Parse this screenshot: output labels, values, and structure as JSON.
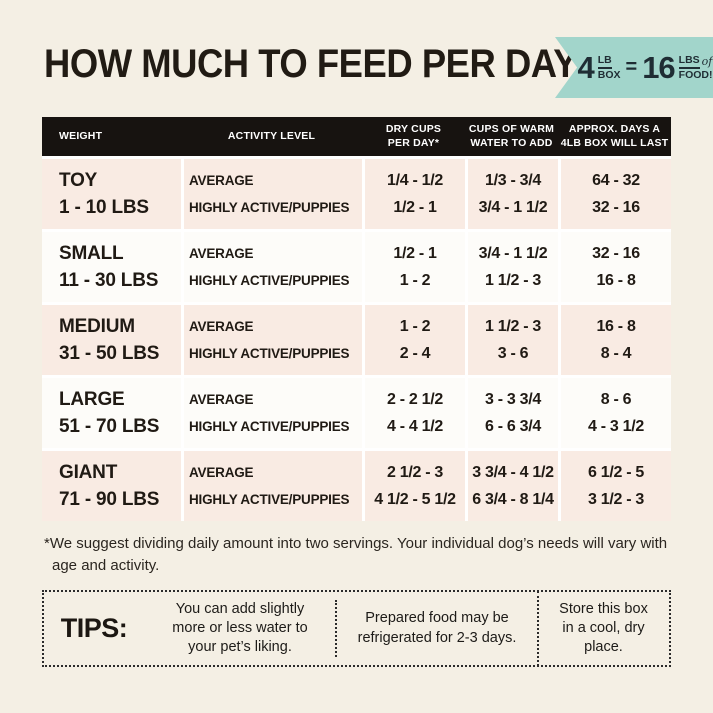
{
  "page": {
    "title": "HOW MUCH TO FEED PER DAY"
  },
  "colors": {
    "background": "#f4efe4",
    "badge_teal": "#a2d5cb",
    "header_black": "#171310",
    "row_pink": "#f9ebe3",
    "row_white": "#fdfcf9",
    "text": "#201a14"
  },
  "badge": {
    "amount1": "4",
    "unit1_top": "LB",
    "unit1_bottom": "BOX",
    "equals": "=",
    "amount2": "16",
    "unit2_top": "LBS",
    "unit2_of": "of",
    "unit2_bottom": "FOOD!"
  },
  "table": {
    "header": [
      "WEIGHT",
      "ACTIVITY LEVEL",
      "DRY CUPS\nPER DAY*",
      "CUPS OF WARM\nWATER TO ADD",
      "APPROX. DAYS A\n4LB BOX WILL LAST"
    ],
    "activity_labels": [
      "AVERAGE",
      "HIGHLY ACTIVE/PUPPIES"
    ],
    "rows": [
      {
        "size": "TOY",
        "range": "1 - 10 LBS",
        "average": {
          "dry": "1/4 - 1/2",
          "water": "1/3 - 3/4",
          "days": "64 - 32"
        },
        "active": {
          "dry": "1/2 - 1",
          "water": "3/4 - 1 1/2",
          "days": "32 - 16"
        }
      },
      {
        "size": "SMALL",
        "range": "11 - 30 LBS",
        "average": {
          "dry": "1/2 - 1",
          "water": "3/4 - 1 1/2",
          "days": "32 - 16"
        },
        "active": {
          "dry": "1 - 2",
          "water": "1 1/2 - 3",
          "days": "16 - 8"
        }
      },
      {
        "size": "MEDIUM",
        "range": "31 - 50 LBS",
        "average": {
          "dry": "1 - 2",
          "water": "1 1/2 - 3",
          "days": "16 - 8"
        },
        "active": {
          "dry": "2 - 4",
          "water": "3 - 6",
          "days": "8 - 4"
        }
      },
      {
        "size": "LARGE",
        "range": "51 - 70 LBS",
        "average": {
          "dry": "2 - 2 1/2",
          "water": "3 - 3 3/4",
          "days": "8 - 6"
        },
        "active": {
          "dry": "4 - 4 1/2",
          "water": "6 - 6 3/4",
          "days": "4 - 3 1/2"
        }
      },
      {
        "size": "GIANT",
        "range": "71 - 90 LBS",
        "average": {
          "dry": "2 1/2 - 3",
          "water": "3 3/4 - 4 1/2",
          "days": "6 1/2 - 5"
        },
        "active": {
          "dry": "4 1/2 - 5 1/2",
          "water": "6 3/4 - 8 1/4",
          "days": "3 1/2 - 3"
        }
      }
    ]
  },
  "footnote": "*We suggest dividing daily amount into two servings. Your individual dog’s needs will vary with age and activity.",
  "tips": {
    "label": "TIPS:",
    "items": [
      "You can add slightly more or less water to your pet’s liking.",
      "Prepared food may be refrigerated for 2-3 days.",
      "Store this box in a cool, dry place."
    ]
  },
  "chart_data": {
    "type": "table",
    "title": "HOW MUCH TO FEED PER DAY",
    "columns": [
      "WEIGHT",
      "ACTIVITY LEVEL",
      "DRY CUPS PER DAY*",
      "CUPS OF WARM WATER TO ADD",
      "APPROX. DAYS A 4LB BOX WILL LAST"
    ],
    "rows": [
      [
        "TOY 1 - 10 LBS",
        "AVERAGE",
        "1/4 - 1/2",
        "1/3 - 3/4",
        "64 - 32"
      ],
      [
        "TOY 1 - 10 LBS",
        "HIGHLY ACTIVE/PUPPIES",
        "1/2 - 1",
        "3/4 - 1 1/2",
        "32 - 16"
      ],
      [
        "SMALL 11 - 30 LBS",
        "AVERAGE",
        "1/2 - 1",
        "3/4 - 1 1/2",
        "32 - 16"
      ],
      [
        "SMALL 11 - 30 LBS",
        "HIGHLY ACTIVE/PUPPIES",
        "1 - 2",
        "1 1/2 - 3",
        "16 - 8"
      ],
      [
        "MEDIUM 31 - 50 LBS",
        "AVERAGE",
        "1 - 2",
        "1 1/2 - 3",
        "16 - 8"
      ],
      [
        "MEDIUM 31 - 50 LBS",
        "HIGHLY ACTIVE/PUPPIES",
        "2 - 4",
        "3 - 6",
        "8 - 4"
      ],
      [
        "LARGE 51 - 70 LBS",
        "AVERAGE",
        "2 - 2 1/2",
        "3 - 3 3/4",
        "8 - 6"
      ],
      [
        "LARGE 51 - 70 LBS",
        "HIGHLY ACTIVE/PUPPIES",
        "4 - 4 1/2",
        "6 - 6 3/4",
        "4 - 3 1/2"
      ],
      [
        "GIANT 71 - 90 LBS",
        "AVERAGE",
        "2 1/2 - 3",
        "3 3/4 - 4 1/2",
        "6 1/2 - 5"
      ],
      [
        "GIANT 71 - 90 LBS",
        "HIGHLY ACTIVE/PUPPIES",
        "4 1/2 - 5 1/2",
        "6 3/4 - 8 1/4",
        "3 1/2 - 3"
      ]
    ]
  }
}
